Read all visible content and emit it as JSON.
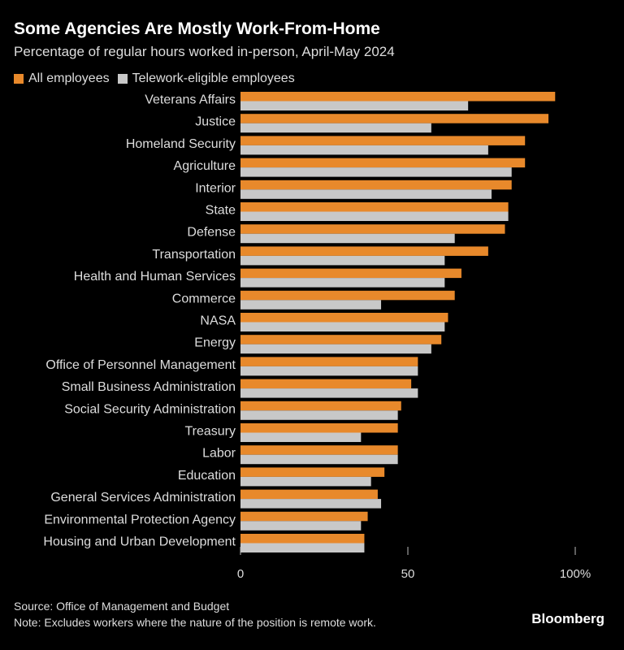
{
  "chart_data": {
    "type": "bar",
    "orientation": "horizontal",
    "title": "Some Agencies Are Mostly Work-From-Home",
    "subtitle": "Percentage of regular hours worked in-person, April-May 2024",
    "categories": [
      "Veterans Affairs",
      "Justice",
      "Homeland Security",
      "Agriculture",
      "Interior",
      "State",
      "Defense",
      "Transportation",
      "Health and Human Services",
      "Commerce",
      "NASA",
      "Energy",
      "Office of Personnel Management",
      "Small Business Administration",
      "Social Security Administration",
      "Treasury",
      "Labor",
      "Education",
      "General Services Administration",
      "Environmental Protection Agency",
      "Housing and Urban Development"
    ],
    "series": [
      {
        "name": "All employees",
        "color": "#e8892b",
        "values": [
          94,
          92,
          85,
          85,
          81,
          80,
          79,
          74,
          66,
          64,
          62,
          60,
          53,
          51,
          48,
          47,
          47,
          43,
          41,
          38,
          37
        ]
      },
      {
        "name": "Telework-eligible employees",
        "color": "#c8c8c8",
        "values": [
          68,
          57,
          74,
          81,
          75,
          80,
          64,
          61,
          61,
          42,
          61,
          57,
          53,
          53,
          47,
          36,
          47,
          39,
          42,
          36,
          37
        ]
      }
    ],
    "xlim": [
      0,
      100
    ],
    "xticks": [
      0,
      50,
      100
    ],
    "xtick_labels": [
      "0",
      "50",
      "100%"
    ],
    "legend_position": "top-left"
  },
  "footer": {
    "source": "Source: Office of Management and Budget",
    "note": "Note: Excludes workers where the nature of the position is remote work.",
    "brand": "Bloomberg"
  }
}
